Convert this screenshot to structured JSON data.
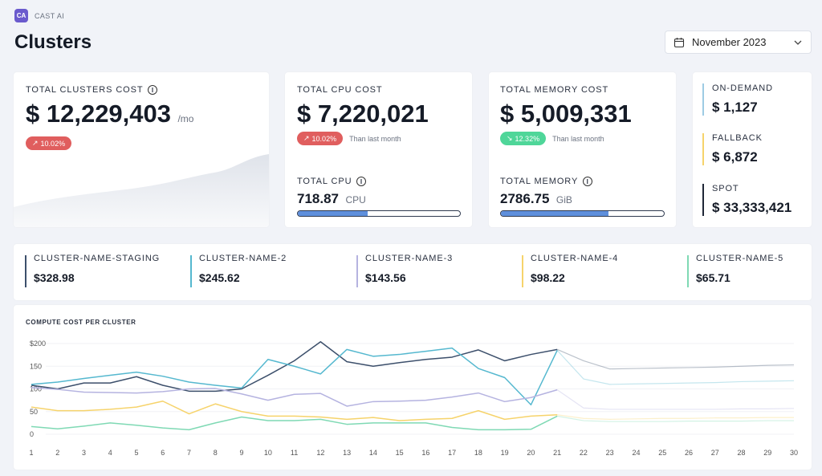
{
  "brand": {
    "logo_text": "CA",
    "name": "CAST AI"
  },
  "page": {
    "title": "Clusters"
  },
  "date_picker": {
    "value": "November 2023"
  },
  "total_clusters_cost": {
    "label": "TOTAL CLUSTERS COST",
    "value": "$ 12,229,403",
    "unit": "/mo",
    "badge": "10.02%",
    "trend": "up"
  },
  "total_cpu_cost": {
    "label": "TOTAL CPU COST",
    "value": "$ 7,220,021",
    "badge": "10.02%",
    "badge_note": "Than last month",
    "sub_label": "TOTAL CPU",
    "sub_value": "718.87",
    "sub_unit": "CPU",
    "progress": 0.43
  },
  "total_memory_cost": {
    "label": "TOTAL MEMORY COST",
    "value": "$ 5,009,331",
    "badge": "12.32%",
    "badge_note": "Than last month",
    "sub_label": "TOTAL MEMORY",
    "sub_value": "2786.75",
    "sub_unit": "GiB",
    "progress": 0.66
  },
  "split": [
    {
      "label": "ON-DEMAND",
      "value": "$ 1,127",
      "color": "#9ecbe4"
    },
    {
      "label": "FALLBACK",
      "value": "$ 6,872",
      "color": "#f6d36b"
    },
    {
      "label": "SPOT",
      "value": "$ 33,333,421",
      "color": "#1f2737"
    }
  ],
  "clusters": [
    {
      "label": "CLUSTER-NAME-STAGING",
      "value": "$328.98",
      "color": "#3c4f6b"
    },
    {
      "label": "CLUSTER-NAME-2",
      "value": "$245.62",
      "color": "#55b8cf"
    },
    {
      "label": "CLUSTER-NAME-3",
      "value": "$143.56",
      "color": "#b5b3e0"
    },
    {
      "label": "CLUSTER-NAME-4",
      "value": "$98.22",
      "color": "#f6d36b"
    },
    {
      "label": "CLUSTER-NAME-5",
      "value": "$65.71",
      "color": "#7fd9b4"
    }
  ],
  "chart_data": {
    "type": "line",
    "title": "COMPUTE COST PER CLUSTER",
    "ytick_labels": [
      "$200",
      "150",
      "100",
      "50",
      "0"
    ],
    "yticks": [
      200,
      150,
      100,
      50,
      0
    ],
    "ylim": [
      0,
      200
    ],
    "x": [
      1,
      2,
      3,
      4,
      5,
      6,
      7,
      8,
      9,
      10,
      11,
      12,
      13,
      14,
      15,
      16,
      17,
      18,
      19,
      20,
      21,
      22,
      23,
      24,
      25,
      26,
      27,
      28,
      29,
      30
    ],
    "actual_until": 21,
    "series": [
      {
        "color": "#3c4f6b",
        "values": [
          108,
          100,
          113,
          113,
          127,
          108,
          95,
          95,
          100,
          130,
          162,
          204,
          160,
          150,
          158,
          165,
          170,
          186,
          162,
          176,
          187,
          162,
          144,
          145,
          146,
          147,
          148,
          150,
          152,
          153
        ]
      },
      {
        "color": "#55b8cf",
        "values": [
          110,
          115,
          123,
          130,
          137,
          128,
          115,
          108,
          102,
          165,
          150,
          133,
          187,
          172,
          176,
          183,
          190,
          145,
          125,
          65,
          185,
          122,
          110,
          111,
          112,
          113,
          114,
          116,
          117,
          118
        ]
      },
      {
        "color": "#b5b3e0",
        "values": [
          103,
          99,
          93,
          92,
          91,
          94,
          100,
          101,
          89,
          75,
          88,
          90,
          62,
          72,
          73,
          75,
          82,
          91,
          72,
          81,
          98,
          58,
          55,
          55,
          55,
          55,
          55,
          56,
          56,
          57
        ]
      },
      {
        "color": "#f6d36b",
        "values": [
          60,
          52,
          52,
          55,
          60,
          73,
          45,
          67,
          50,
          40,
          40,
          38,
          33,
          37,
          30,
          33,
          35,
          52,
          33,
          40,
          43,
          35,
          33,
          34,
          35,
          35,
          36,
          36,
          37,
          37
        ]
      },
      {
        "color": "#7fd9b4",
        "values": [
          17,
          12,
          18,
          25,
          20,
          14,
          10,
          25,
          38,
          30,
          30,
          33,
          22,
          25,
          25,
          25,
          15,
          10,
          10,
          11,
          40,
          30,
          28,
          28,
          28,
          29,
          29,
          29,
          30,
          30
        ]
      }
    ]
  }
}
